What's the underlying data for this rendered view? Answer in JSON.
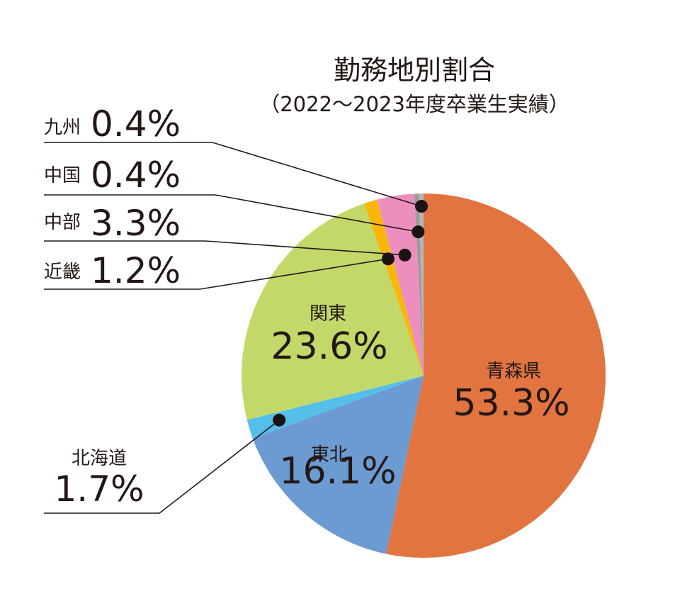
{
  "chart_data": {
    "type": "pie",
    "title": "勤務地別割合",
    "subtitle": "（2022～2023年度卒業生実績）",
    "slices": [
      {
        "name": "青森県",
        "value": 53.3,
        "label": "53.3%",
        "color": "#e27440"
      },
      {
        "name": "東北",
        "value": 16.1,
        "label": "16.1%",
        "color": "#6c9bd2"
      },
      {
        "name": "北海道",
        "value": 1.7,
        "label": "1.7%",
        "color": "#55bfea"
      },
      {
        "name": "関東",
        "value": 23.6,
        "label": "23.6%",
        "color": "#c2d869"
      },
      {
        "name": "近畿",
        "value": 1.2,
        "label": "1.2%",
        "color": "#f8b60d"
      },
      {
        "name": "中部",
        "value": 3.3,
        "label": "3.3%",
        "color": "#ec8fbe"
      },
      {
        "name": "中国",
        "value": 0.4,
        "label": "0.4%",
        "color": "#9b9b9b"
      },
      {
        "name": "九州",
        "value": 0.4,
        "label": "0.4%",
        "color": "#b5b5b5"
      }
    ]
  }
}
